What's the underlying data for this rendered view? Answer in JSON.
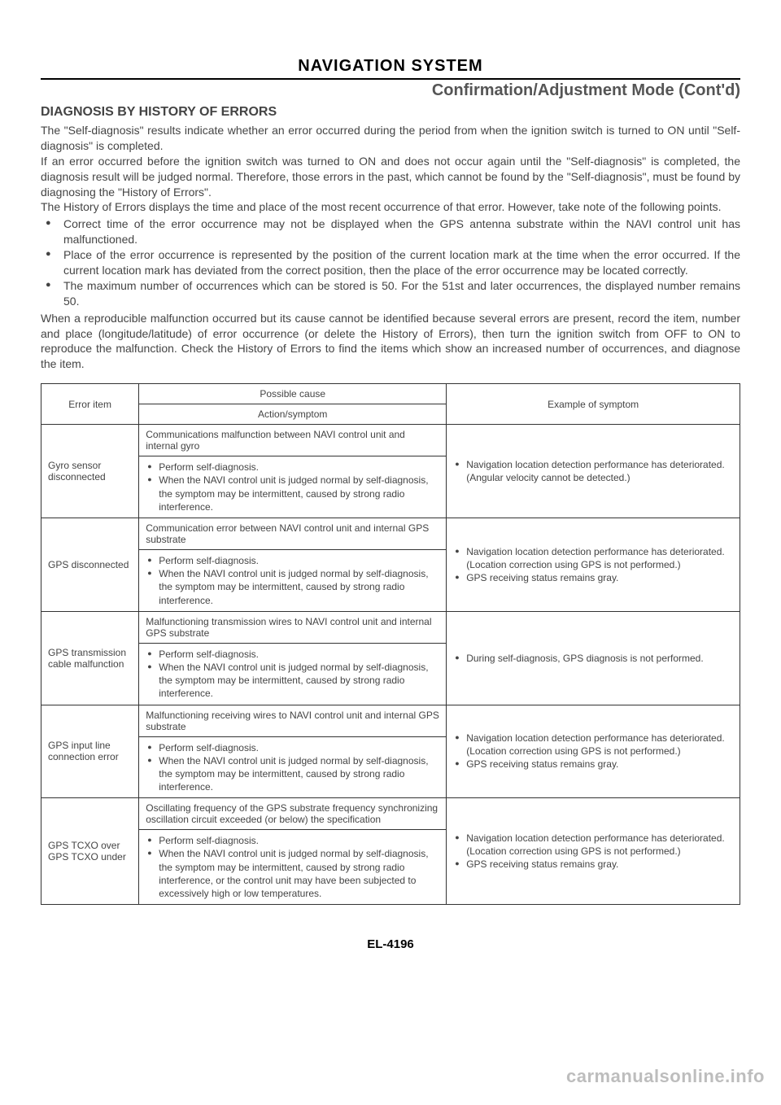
{
  "header": {
    "title": "NAVIGATION SYSTEM",
    "subtitle": "Confirmation/Adjustment Mode (Cont'd)"
  },
  "section_heading": "DIAGNOSIS BY HISTORY OF ERRORS",
  "paragraphs": {
    "p1": "The \"Self-diagnosis\" results indicate whether an error occurred during the period from when the ignition switch is turned to ON until \"Self-diagnosis\" is completed.",
    "p2": "If an error occurred before the ignition switch was turned to ON and does not occur again until the \"Self-diagnosis\" is completed, the diagnosis result will be judged normal. Therefore, those errors in the past, which cannot be found by the \"Self-diagnosis\", must be found by diagnosing the \"History of Errors\".",
    "p3": "The History of Errors displays the time and place of the most recent occurrence of that error. However, take note of the following points.",
    "p4": "When a reproducible malfunction occurred but its cause cannot be identified because several errors are present, record the item, number and place (longitude/latitude) of error occurrence (or delete the History of Errors), then turn the ignition switch from OFF to ON to reproduce the malfunction. Check the History of Errors to find the items which show an increased number of occurrences, and diagnose the item."
  },
  "bullets": {
    "b1": "Correct time of the error occurrence may not be displayed when the GPS antenna substrate within the NAVI control unit has malfunctioned.",
    "b2": "Place of the error occurrence is represented by the position of the current location mark at the time when the error occurred. If the current location mark has deviated from the correct position, then the place of the error occurrence may be located correctly.",
    "b3": "The maximum number of occurrences which can be stored is 50. For the 51st and later occurrences, the displayed number remains 50."
  },
  "table": {
    "headers": {
      "error_item": "Error item",
      "possible_cause": "Possible cause",
      "action_symptom": "Action/symptom",
      "example": "Example of symptom"
    },
    "rows": [
      {
        "item": "Gyro sensor disconnected",
        "cause": "Communications malfunction between NAVI control unit and internal gyro",
        "actions": [
          "Perform self-diagnosis.",
          "When the NAVI control unit is judged normal by self-diagnosis, the symptom may be intermittent, caused by strong radio interference."
        ],
        "examples": [
          "Navigation location detection performance has deteriorated. (Angular velocity cannot be detected.)"
        ]
      },
      {
        "item": "GPS disconnected",
        "cause": "Communication error between NAVI control unit and internal GPS substrate",
        "actions": [
          "Perform self-diagnosis.",
          "When the NAVI control unit is judged normal by self-diagnosis, the symptom may be intermittent, caused by strong radio interference."
        ],
        "examples": [
          "Navigation location detection performance has deteriorated. (Location correction using GPS is not performed.)",
          "GPS receiving status remains gray."
        ]
      },
      {
        "item": "GPS transmission cable malfunction",
        "cause": "Malfunctioning transmission wires to NAVI control unit and internal GPS substrate",
        "actions": [
          "Perform self-diagnosis.",
          "When the NAVI control unit is judged normal by self-diagnosis, the symptom may be intermittent, caused by strong radio interference."
        ],
        "examples": [
          "During self-diagnosis, GPS diagnosis is not performed."
        ]
      },
      {
        "item": "GPS input line connection error",
        "cause": "Malfunctioning receiving wires to NAVI control unit and internal GPS substrate",
        "actions": [
          "Perform self-diagnosis.",
          "When the NAVI control unit is judged normal by self-diagnosis, the symptom may be intermittent, caused by strong radio interference."
        ],
        "examples": [
          "Navigation location detection performance has deteriorated. (Location correction using GPS is not performed.)",
          "GPS receiving status remains gray."
        ]
      },
      {
        "item": "GPS TCXO over\nGPS TCXO under",
        "cause": "Oscillating frequency of the GPS substrate frequency synchronizing oscillation circuit exceeded (or below) the specification",
        "actions": [
          "Perform self-diagnosis.",
          "When the NAVI control unit is judged normal by self-diagnosis, the symptom may be intermittent, caused by strong radio interference, or the control unit may have been subjected to excessively high or low temperatures."
        ],
        "examples": [
          "Navigation location detection performance has deteriorated. (Location correction using GPS is not performed.)",
          "GPS receiving status remains gray."
        ]
      }
    ]
  },
  "footer": {
    "page_number": "EL-4196",
    "watermark": "carmanualsonline.info"
  }
}
